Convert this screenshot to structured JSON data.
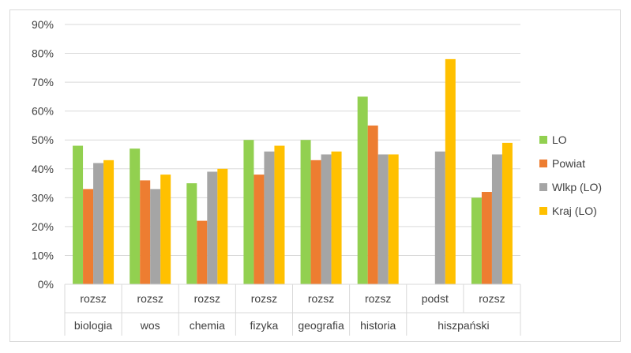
{
  "chart_data": {
    "type": "bar",
    "title": "",
    "xlabel": "",
    "ylabel": "",
    "ylim": [
      0,
      90
    ],
    "y_ticks": [
      "0%",
      "10%",
      "20%",
      "30%",
      "40%",
      "50%",
      "60%",
      "70%",
      "80%",
      "90%"
    ],
    "grid": true,
    "legend_position": "right",
    "categories": [
      {
        "level": "rozsz",
        "subject": "biologia"
      },
      {
        "level": "rozsz",
        "subject": "wos"
      },
      {
        "level": "rozsz",
        "subject": "chemia"
      },
      {
        "level": "rozsz",
        "subject": "fizyka"
      },
      {
        "level": "rozsz",
        "subject": "geografia"
      },
      {
        "level": "rozsz",
        "subject": "historia"
      },
      {
        "level": "podst",
        "subject": "hiszpański"
      },
      {
        "level": "rozsz",
        "subject": "hiszpański"
      }
    ],
    "groups": [
      {
        "label": "biologia",
        "span": 1
      },
      {
        "label": "wos",
        "span": 1
      },
      {
        "label": "chemia",
        "span": 1
      },
      {
        "label": "fizyka",
        "span": 1
      },
      {
        "label": "geografia",
        "span": 1
      },
      {
        "label": "historia",
        "span": 1
      },
      {
        "label": "hiszpański",
        "span": 2
      }
    ],
    "series": [
      {
        "name": "LO",
        "color": "#92d050",
        "values": [
          48,
          47,
          35,
          50,
          50,
          65,
          null,
          30
        ]
      },
      {
        "name": "Powiat",
        "color": "#ed7d31",
        "values": [
          33,
          36,
          22,
          38,
          43,
          55,
          null,
          32
        ]
      },
      {
        "name": "Wlkp (LO)",
        "color": "#a5a5a5",
        "values": [
          42,
          33,
          39,
          46,
          45,
          45,
          46,
          45
        ]
      },
      {
        "name": "Kraj (LO)",
        "color": "#ffc000",
        "values": [
          43,
          38,
          40,
          48,
          46,
          45,
          78,
          49
        ]
      }
    ]
  }
}
